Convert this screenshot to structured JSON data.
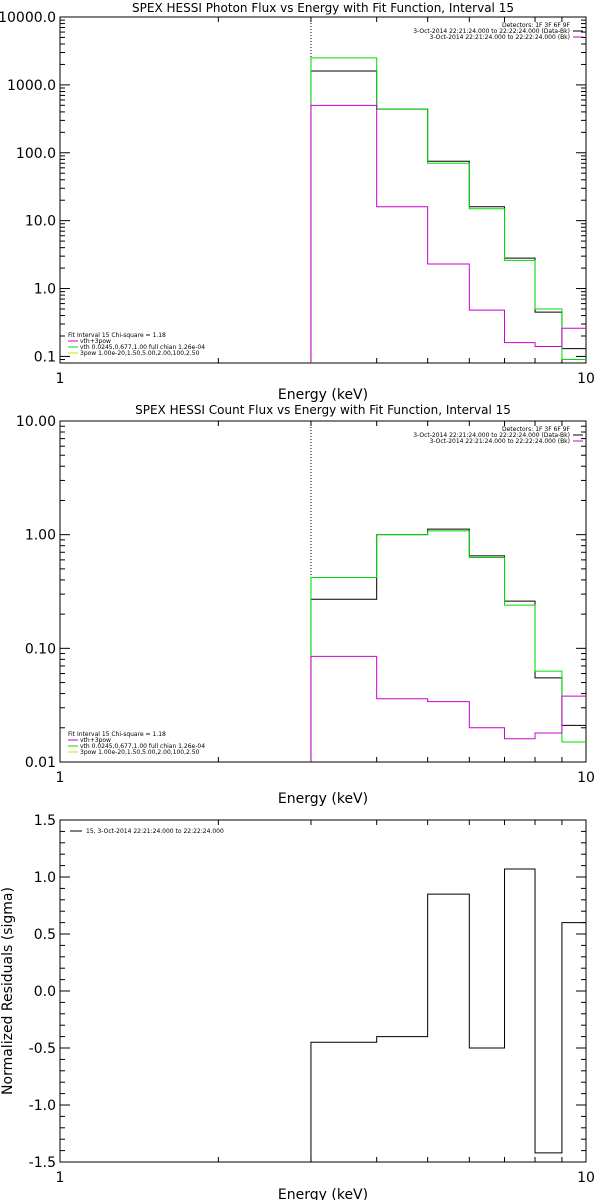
{
  "chart_data": [
    {
      "type": "line",
      "title": "SPEX HESSI Photon Flux vs Energy with Fit Function, Interval 15",
      "xlabel": "Energy (keV)",
      "ylabel": "",
      "x_scale": "log",
      "y_scale": "log",
      "xlim": [
        1,
        10
      ],
      "ylim": [
        0.08,
        10000
      ],
      "x_ticks": [
        "1",
        "10"
      ],
      "y_ticks": [
        "0.1",
        "1.0",
        "10.0",
        "100.0",
        "1000.0",
        "10000.0"
      ],
      "y_tick_values": [
        0.1,
        1,
        10,
        100,
        1000,
        10000
      ],
      "bin_edges": [
        3,
        4,
        5,
        6,
        7,
        8,
        9,
        10
      ],
      "vline_x": 3,
      "legend_top": [
        {
          "text": "Detectors: 1F 3F 6F 9F",
          "color": ""
        },
        {
          "text": "3-Oct-2014 22:21:24.000 to 22:22:24.000 (Data-Bk)",
          "color": "#000000"
        },
        {
          "text": "3-Oct-2014 22:21:24.000 to 22:22:24.000 (Bk)",
          "color": "#cc00cc"
        }
      ],
      "legend_bottom": [
        {
          "text": "Fit Interval 15   Chi-square = 1.18",
          "color": ""
        },
        {
          "text": "vth+3pow",
          "color": "#cc00cc"
        },
        {
          "text": "vth 0.0245,0.677,1.00  full chian 1.26e-04",
          "color": "#00dd00"
        },
        {
          "text": "3pow 1.00e-20,1.50,5.00,2.00,100,2.50",
          "color": "#dddd00"
        }
      ],
      "series": [
        {
          "color": "#000000",
          "values": [
            1600,
            440,
            75,
            16,
            2.8,
            0.45,
            0.13
          ]
        },
        {
          "color": "#00dd00",
          "values": [
            2500,
            440,
            70,
            15,
            2.6,
            0.5,
            0.09
          ]
        },
        {
          "color": "#cc00cc",
          "values": [
            500,
            16,
            2.3,
            0.48,
            0.16,
            0.14,
            0.26
          ]
        }
      ]
    },
    {
      "type": "line",
      "title": "SPEX HESSI Count Flux vs Energy with Fit Function, Interval 15",
      "xlabel": "Energy (keV)",
      "ylabel": "",
      "x_scale": "log",
      "y_scale": "log",
      "xlim": [
        1,
        10
      ],
      "ylim": [
        0.01,
        10
      ],
      "x_ticks": [
        "1",
        "10"
      ],
      "y_ticks": [
        "0.01",
        "0.10",
        "1.00",
        "10.00"
      ],
      "y_tick_values": [
        0.01,
        0.1,
        1,
        10
      ],
      "bin_edges": [
        3,
        4,
        5,
        6,
        7,
        8,
        9,
        10
      ],
      "vline_x": 3,
      "legend_top": [
        {
          "text": "Detectors: 1F 3F 6F 9F",
          "color": ""
        },
        {
          "text": "3-Oct-2014 22:21:24.000 to 22:22:24.000 (Data-Bk)",
          "color": "#000000"
        },
        {
          "text": "3-Oct-2014 22:21:24.000 to 22:22:24.000 (Bk)",
          "color": "#cc00cc"
        }
      ],
      "legend_bottom": [
        {
          "text": "Fit Interval 15   Chi-square = 1.18",
          "color": ""
        },
        {
          "text": "vth+3pow",
          "color": "#cc00cc"
        },
        {
          "text": "vth 0.0245,0.677,1.00  full chian 1.26e-04",
          "color": "#00dd00"
        },
        {
          "text": "3pow 1.00e-20,1.50,5.00,2.00,100,2.50",
          "color": "#dddd00"
        }
      ],
      "series": [
        {
          "color": "#000000",
          "values": [
            0.27,
            1.0,
            1.12,
            0.65,
            0.26,
            0.055,
            0.021
          ]
        },
        {
          "color": "#00dd00",
          "values": [
            0.42,
            1.0,
            1.08,
            0.63,
            0.24,
            0.063,
            0.015
          ]
        },
        {
          "color": "#cc00cc",
          "values": [
            0.085,
            0.036,
            0.034,
            0.02,
            0.016,
            0.018,
            0.038
          ]
        }
      ]
    },
    {
      "type": "line",
      "title": "",
      "xlabel": "Energy (keV)",
      "ylabel": "Normalized Residuals (sigma)",
      "x_scale": "log",
      "y_scale": "linear",
      "xlim": [
        1,
        10
      ],
      "ylim": [
        -1.5,
        1.5
      ],
      "x_ticks": [
        "1",
        "10"
      ],
      "y_ticks": [
        "-1.5",
        "-1.0",
        "-0.5",
        "0.0",
        "0.5",
        "1.0",
        "1.5"
      ],
      "y_tick_values": [
        -1.5,
        -1.0,
        -0.5,
        0.0,
        0.5,
        1.0,
        1.5
      ],
      "bin_edges": [
        3,
        4,
        5,
        6,
        7,
        8,
        9,
        10
      ],
      "legend_top": [
        {
          "text": "15,  3-Oct-2014 22:21:24.000 to 22:22:24.000",
          "color": "#000000"
        }
      ],
      "series": [
        {
          "color": "#000000",
          "values": [
            -0.45,
            -0.4,
            0.85,
            -0.5,
            1.07,
            -1.42,
            0.6
          ]
        }
      ]
    }
  ]
}
